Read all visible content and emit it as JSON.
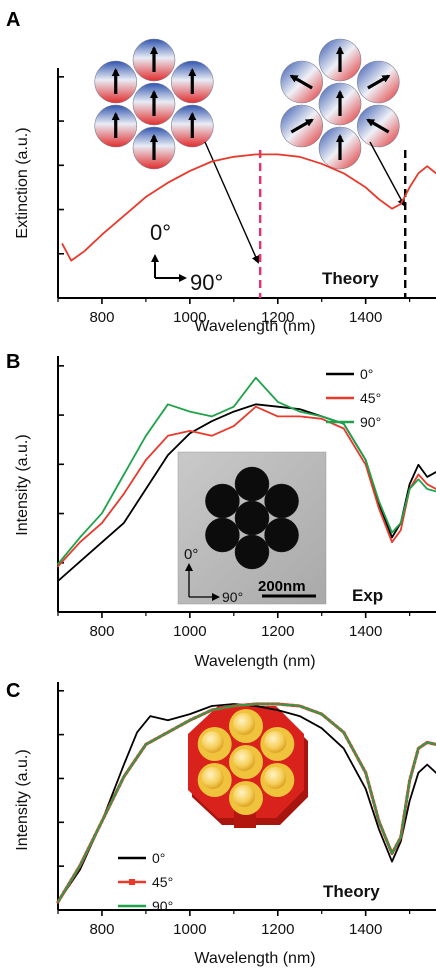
{
  "panels": [
    {
      "letter": "A",
      "ylabel": "Extinction (a.u.)",
      "xlabel": "Wavelength (nm)",
      "tag": "Theory",
      "polarization": {
        "up": "0°",
        "right": "90°"
      }
    },
    {
      "letter": "B",
      "ylabel": "Intensity (a.u.)",
      "xlabel": "Wavelength (nm)",
      "tag": "Exp",
      "polarization": {
        "up": "0°",
        "right": "90°"
      },
      "scale_bar": "200nm"
    },
    {
      "letter": "C",
      "ylabel": "Intensity (a.u.)",
      "xlabel": "Wavelength (nm)",
      "tag": "Theory"
    }
  ],
  "colors": {
    "black": "#000000",
    "red": "#e8392b",
    "green": "#1fa34a",
    "dash_pink": "#e8306a",
    "cluster_blue": "#3a5fb5",
    "cluster_red": "#e23a3a",
    "sphere_gold": "#f2c94c",
    "substrate_red": "#d9221c"
  },
  "chart_data": [
    {
      "type": "line",
      "panel": "A",
      "xlabel": "Wavelength (nm)",
      "ylabel": "Extinction (a.u.)",
      "xlim": [
        700,
        1560
      ],
      "ylim": [
        0,
        1
      ],
      "xticks": [
        800,
        1000,
        1200,
        1400
      ],
      "markers": [
        1160,
        1490
      ],
      "series": [
        {
          "color": "#e8392b",
          "x": [
            710,
            730,
            760,
            800,
            850,
            900,
            950,
            1000,
            1050,
            1100,
            1150,
            1200,
            1250,
            1300,
            1350,
            1400,
            1430,
            1460,
            1480,
            1500,
            1520,
            1540,
            1560
          ],
          "y": [
            0.22,
            0.15,
            0.19,
            0.26,
            0.34,
            0.42,
            0.48,
            0.53,
            0.57,
            0.59,
            0.6,
            0.6,
            0.59,
            0.56,
            0.52,
            0.46,
            0.41,
            0.37,
            0.39,
            0.46,
            0.52,
            0.55,
            0.52
          ]
        }
      ]
    },
    {
      "type": "line",
      "panel": "B",
      "xlabel": "Wavelength (nm)",
      "ylabel": "Intensity (a.u.)",
      "xlim": [
        700,
        1560
      ],
      "ylim": [
        0,
        1
      ],
      "xticks": [
        800,
        1000,
        1200,
        1400
      ],
      "legend_position": "top-right",
      "series": [
        {
          "name": "0°",
          "color": "#000000",
          "x": [
            700,
            750,
            800,
            850,
            900,
            950,
            1000,
            1050,
            1100,
            1150,
            1200,
            1250,
            1300,
            1350,
            1400,
            1430,
            1460,
            1480,
            1500,
            1520,
            1540,
            1560
          ],
          "y": [
            0.12,
            0.2,
            0.28,
            0.36,
            0.5,
            0.64,
            0.73,
            0.78,
            0.82,
            0.85,
            0.84,
            0.83,
            0.8,
            0.77,
            0.62,
            0.44,
            0.3,
            0.36,
            0.52,
            0.6,
            0.55,
            0.57
          ]
        },
        {
          "name": "45°",
          "color": "#e8392b",
          "x": [
            700,
            750,
            800,
            850,
            900,
            950,
            1000,
            1050,
            1100,
            1150,
            1200,
            1250,
            1300,
            1350,
            1400,
            1430,
            1460,
            1480,
            1500,
            1520,
            1540,
            1560
          ],
          "y": [
            0.18,
            0.28,
            0.36,
            0.48,
            0.62,
            0.72,
            0.74,
            0.72,
            0.76,
            0.84,
            0.8,
            0.8,
            0.79,
            0.75,
            0.6,
            0.42,
            0.28,
            0.33,
            0.5,
            0.56,
            0.52,
            0.5
          ]
        },
        {
          "name": "90°",
          "color": "#1fa34a",
          "x": [
            700,
            750,
            800,
            850,
            900,
            950,
            1000,
            1050,
            1100,
            1150,
            1200,
            1250,
            1300,
            1350,
            1400,
            1430,
            1460,
            1480,
            1500,
            1520,
            1540,
            1560
          ],
          "y": [
            0.19,
            0.3,
            0.4,
            0.56,
            0.72,
            0.85,
            0.82,
            0.8,
            0.84,
            0.96,
            0.86,
            0.82,
            0.8,
            0.77,
            0.62,
            0.45,
            0.32,
            0.36,
            0.5,
            0.54,
            0.5,
            0.49
          ]
        }
      ]
    },
    {
      "type": "line",
      "panel": "C",
      "xlabel": "Wavelength (nm)",
      "ylabel": "Intensity (a.u.)",
      "xlim": [
        700,
        1560
      ],
      "ylim": [
        0,
        1
      ],
      "xticks": [
        800,
        1000,
        1200,
        1400
      ],
      "legend_position": "bottom-left",
      "series": [
        {
          "name": "0°",
          "color": "#000000",
          "x": [
            700,
            750,
            800,
            850,
            880,
            910,
            950,
            1000,
            1050,
            1100,
            1150,
            1200,
            1250,
            1300,
            1350,
            1400,
            1430,
            1460,
            1480,
            1500,
            1520,
            1540,
            1560
          ],
          "y": [
            0.02,
            0.18,
            0.42,
            0.7,
            0.86,
            0.94,
            0.92,
            0.95,
            0.99,
            1.0,
            0.99,
            0.97,
            0.94,
            0.88,
            0.78,
            0.58,
            0.38,
            0.22,
            0.32,
            0.52,
            0.66,
            0.7,
            0.66
          ]
        },
        {
          "name": "45°",
          "color": "#e8392b",
          "x": [
            700,
            750,
            800,
            850,
            900,
            950,
            1000,
            1050,
            1100,
            1150,
            1200,
            1250,
            1300,
            1350,
            1400,
            1430,
            1460,
            1480,
            1500,
            1520,
            1540,
            1560
          ],
          "y": [
            0.02,
            0.2,
            0.42,
            0.64,
            0.8,
            0.86,
            0.92,
            0.97,
            0.99,
            1.0,
            1.0,
            0.99,
            0.95,
            0.86,
            0.66,
            0.42,
            0.26,
            0.34,
            0.62,
            0.78,
            0.81,
            0.8
          ]
        },
        {
          "name": "90°",
          "color": "#1fa34a",
          "x": [
            700,
            750,
            800,
            850,
            900,
            950,
            1000,
            1050,
            1100,
            1150,
            1200,
            1250,
            1300,
            1350,
            1400,
            1430,
            1460,
            1480,
            1500,
            1520,
            1540,
            1560
          ],
          "y": [
            0.02,
            0.2,
            0.42,
            0.64,
            0.8,
            0.86,
            0.92,
            0.97,
            0.99,
            1.0,
            1.0,
            0.99,
            0.95,
            0.86,
            0.66,
            0.42,
            0.26,
            0.34,
            0.62,
            0.78,
            0.81,
            0.8
          ]
        }
      ]
    }
  ]
}
